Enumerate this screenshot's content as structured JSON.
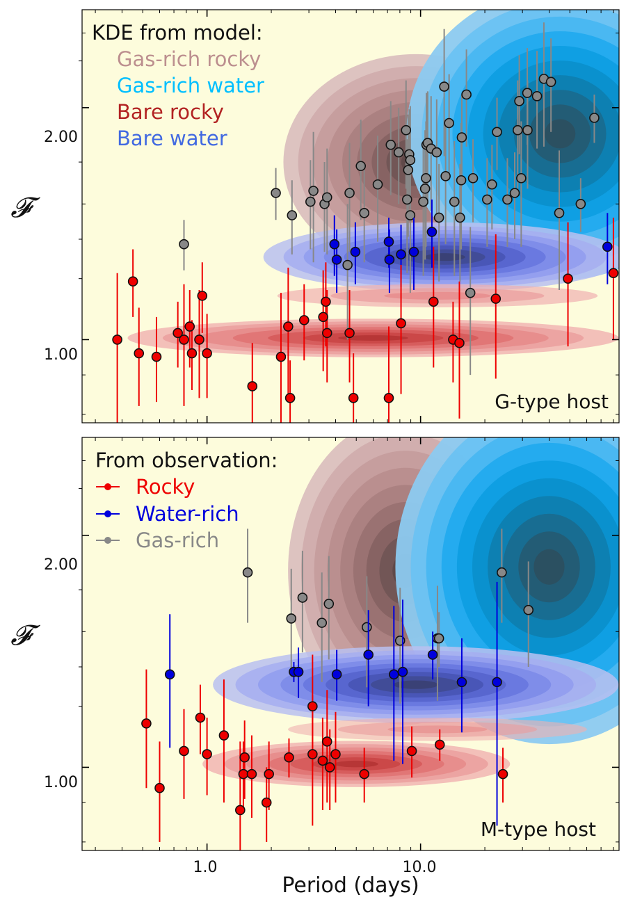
{
  "chart_data": [
    {
      "type": "scatter",
      "panel": "top",
      "xscale": "log",
      "xlim": [
        0.26,
        85
      ],
      "ylim": [
        0.78,
        2.68
      ],
      "yscale": "log",
      "ylabel": "𝓕",
      "yticks": [
        {
          "value": 1.0,
          "label": "1.00"
        },
        {
          "value": 2.0,
          "label": "2.00"
        }
      ],
      "host_label": "G-type host",
      "legend": {
        "title": "KDE from model:",
        "entries": [
          {
            "label": "Gas-rich rocky",
            "color": "#bc8f8f"
          },
          {
            "label": "Gas-rich water",
            "color": "#00bfff"
          },
          {
            "label": "Bare rocky",
            "color": "#b22222"
          },
          {
            "label": "Bare water",
            "color": "#4169e1"
          }
        ]
      },
      "series": [
        {
          "name": "Rocky",
          "color": "#ee0000",
          "points": [
            [
              0.38,
              1.0,
              0.22,
              0.22
            ],
            [
              0.45,
              1.19,
              0.12,
              0.12
            ],
            [
              0.48,
              0.96,
              0.14,
              0.14
            ],
            [
              0.58,
              0.95,
              0.12,
              0.12
            ],
            [
              0.73,
              1.02,
              0.1,
              0.1
            ],
            [
              0.78,
              1.0,
              0.18,
              0.18
            ],
            [
              0.83,
              1.04,
              0.12,
              0.12
            ],
            [
              0.85,
              0.96,
              0.1,
              0.1
            ],
            [
              0.92,
              1.0,
              0.16,
              0.16
            ],
            [
              0.95,
              1.14,
              0.12,
              0.12
            ],
            [
              1.0,
              0.96,
              0.12,
              0.12
            ],
            [
              1.63,
              0.87,
              0.12,
              0.12
            ],
            [
              2.22,
              0.95,
              0.2,
              0.2
            ],
            [
              2.4,
              1.04,
              0.2,
              0.2
            ],
            [
              2.45,
              0.84,
              0.1,
              0.1
            ],
            [
              2.85,
              1.06,
              0.12,
              0.12
            ],
            [
              3.5,
              1.07,
              0.16,
              0.16
            ],
            [
              3.6,
              1.12,
              0.14,
              0.14
            ],
            [
              3.65,
              1.02,
              0.14,
              0.14
            ],
            [
              4.65,
              1.02,
              0.14,
              0.14
            ],
            [
              4.85,
              0.84,
              0.12,
              0.12
            ],
            [
              7.1,
              0.84,
              0.2,
              0.2
            ],
            [
              8.1,
              1.05,
              0.2,
              0.2
            ],
            [
              11.5,
              1.12,
              0.2,
              0.2
            ],
            [
              14.2,
              1.0,
              0.12,
              0.12
            ],
            [
              15.2,
              0.99,
              0.2,
              0.2
            ],
            [
              22.5,
              1.13,
              0.24,
              0.24
            ],
            [
              49,
              1.2,
              0.22,
              0.22
            ],
            [
              80,
              1.22,
              0.22,
              0.22
            ]
          ]
        },
        {
          "name": "Water-rich",
          "color": "#0000dd",
          "points": [
            [
              3.95,
              1.33,
              0.12,
              0.12
            ],
            [
              4.05,
              1.27,
              0.12,
              0.12
            ],
            [
              4.95,
              1.3,
              0.12,
              0.12
            ],
            [
              7.1,
              1.34,
              0.1,
              0.1
            ],
            [
              7.15,
              1.27,
              0.12,
              0.12
            ],
            [
              8.1,
              1.29,
              0.12,
              0.12
            ],
            [
              9.3,
              1.3,
              0.14,
              0.14
            ],
            [
              11.3,
              1.38,
              0.14,
              0.14
            ],
            [
              75,
              1.32,
              0.14,
              0.14
            ]
          ]
        },
        {
          "name": "Gas-rich",
          "color": "#888888",
          "points": [
            [
              0.78,
              1.33,
              0.1,
              0.1
            ],
            [
              2.1,
              1.55,
              0.12,
              0.12
            ],
            [
              2.5,
              1.45,
              0.16,
              0.16
            ],
            [
              3.05,
              1.51,
              0.2,
              0.2
            ],
            [
              3.15,
              1.56,
              0.3,
              0.3
            ],
            [
              3.55,
              1.5,
              0.2,
              0.2
            ],
            [
              3.65,
              1.53,
              0.24,
              0.24
            ],
            [
              4.55,
              1.25,
              0.25,
              0.25
            ],
            [
              4.65,
              1.55,
              0.25,
              0.25
            ],
            [
              5.25,
              1.68,
              0.25,
              0.25
            ],
            [
              5.45,
              1.46,
              0.2,
              0.2
            ],
            [
              6.3,
              1.59,
              0.25,
              0.25
            ],
            [
              7.25,
              1.79,
              0.25,
              0.25
            ],
            [
              7.9,
              1.75,
              0.25,
              0.25
            ],
            [
              8.55,
              1.87,
              0.3,
              0.3
            ],
            [
              8.65,
              1.52,
              0.3,
              0.3
            ],
            [
              8.85,
              1.74,
              0.25,
              0.25
            ],
            [
              8.95,
              1.71,
              0.3,
              0.3
            ],
            [
              8.75,
              1.66,
              0.3,
              0.3
            ],
            [
              8.95,
              1.45,
              0.3,
              0.3
            ],
            [
              10.3,
              1.51,
              0.3,
              0.3
            ],
            [
              10.5,
              1.57,
              0.3,
              0.3
            ],
            [
              10.6,
              1.62,
              0.3,
              0.3
            ],
            [
              10.65,
              1.79,
              0.3,
              0.3
            ],
            [
              10.8,
              1.8,
              0.3,
              0.3
            ],
            [
              11.2,
              1.77,
              0.3,
              0.3
            ],
            [
              11.9,
              1.75,
              0.3,
              0.3
            ],
            [
              12.2,
              1.44,
              0.25,
              0.25
            ],
            [
              12.9,
              2.13,
              0.4,
              0.4
            ],
            [
              13.1,
              1.63,
              0.3,
              0.3
            ],
            [
              13.6,
              1.91,
              0.3,
              0.3
            ],
            [
              14.4,
              1.51,
              0.3,
              0.3
            ],
            [
              15.3,
              1.44,
              0.25,
              0.25
            ],
            [
              15.5,
              1.61,
              0.3,
              0.3
            ],
            [
              15.6,
              1.83,
              0.25,
              0.25
            ],
            [
              16.4,
              2.08,
              0.3,
              0.3
            ],
            [
              17.1,
              1.15,
              0.25,
              0.25
            ],
            [
              17.6,
              1.62,
              0.2,
              0.2
            ],
            [
              20.5,
              1.52,
              0.2,
              0.2
            ],
            [
              21.6,
              1.59,
              0.2,
              0.2
            ],
            [
              22.8,
              1.86,
              0.2,
              0.2
            ],
            [
              25.5,
              1.52,
              0.2,
              0.2
            ],
            [
              27.6,
              1.55,
              0.2,
              0.2
            ],
            [
              28.5,
              1.87,
              0.3,
              0.3
            ],
            [
              29.0,
              2.04,
              0.3,
              0.3
            ],
            [
              29.6,
              1.62,
              0.3,
              0.3
            ],
            [
              31.6,
              2.09,
              0.3,
              0.3
            ],
            [
              31.7,
              1.87,
              0.3,
              0.3
            ],
            [
              35.1,
              2.07,
              0.3,
              0.3
            ],
            [
              37.8,
              2.18,
              0.4,
              0.4
            ],
            [
              40.8,
              2.16,
              0.3,
              0.3
            ],
            [
              44.6,
              1.46,
              0.3,
              0.3
            ],
            [
              56.2,
              1.5,
              0.12,
              0.12
            ],
            [
              65.1,
              1.94,
              0.14,
              0.14
            ]
          ]
        }
      ]
    },
    {
      "type": "scatter",
      "panel": "bottom",
      "xscale": "log",
      "xlim": [
        0.26,
        85
      ],
      "ylim": [
        0.78,
        2.68
      ],
      "yscale": "log",
      "xlabel": "Period (days)",
      "ylabel": "𝓕",
      "xticks": [
        {
          "value": 1.0,
          "label": "1.0"
        },
        {
          "value": 10.0,
          "label": "10.0"
        }
      ],
      "yticks": [
        {
          "value": 1.0,
          "label": "1.00"
        },
        {
          "value": 2.0,
          "label": "2.00"
        }
      ],
      "host_label": "M-type host",
      "legend": {
        "title": "From observation:",
        "entries": [
          {
            "label": "Rocky",
            "color": "#ee0000"
          },
          {
            "label": "Water-rich",
            "color": "#0000dd"
          },
          {
            "label": "Gas-rich",
            "color": "#888888"
          }
        ]
      },
      "series": [
        {
          "name": "Rocky",
          "color": "#ee0000",
          "points": [
            [
              0.52,
              1.14,
              0.2,
              0.2
            ],
            [
              0.6,
              0.94,
              0.14,
              0.14
            ],
            [
              0.78,
              1.05,
              0.14,
              0.14
            ],
            [
              0.93,
              1.16,
              0.12,
              0.12
            ],
            [
              1.0,
              1.04,
              0.12,
              0.12
            ],
            [
              1.2,
              1.1,
              0.2,
              0.2
            ],
            [
              1.43,
              0.88,
              0.2,
              0.2
            ],
            [
              1.5,
              1.03,
              0.12,
              0.12
            ],
            [
              1.48,
              0.98,
              0.1,
              0.1
            ],
            [
              1.62,
              0.98,
              0.12,
              0.12
            ],
            [
              1.9,
              0.9,
              0.1,
              0.1
            ],
            [
              1.95,
              0.98,
              0.1,
              0.1
            ],
            [
              2.42,
              1.03,
              0.06,
              0.06
            ],
            [
              3.12,
              1.2,
              0.2,
              0.2
            ],
            [
              3.12,
              1.04,
              0.2,
              0.2
            ],
            [
              3.48,
              1.02,
              0.14,
              0.14
            ],
            [
              3.65,
              1.08,
              0.18,
              0.18
            ],
            [
              3.76,
              1.0,
              0.12,
              0.12
            ],
            [
              4.0,
              1.04,
              0.14,
              0.14
            ],
            [
              5.45,
              0.98,
              0.08,
              0.08
            ],
            [
              9.1,
              1.05,
              0.08,
              0.08
            ],
            [
              12.3,
              1.07,
              0.05,
              0.05
            ],
            [
              24.3,
              0.98,
              0.08,
              0.08
            ]
          ]
        },
        {
          "name": "Water-rich",
          "color": "#0000dd",
          "points": [
            [
              0.67,
              1.32,
              0.26,
              0.26
            ],
            [
              2.55,
              1.33,
              0.04,
              0.04
            ],
            [
              2.68,
              1.33,
              0.1,
              0.1
            ],
            [
              4.05,
              1.32,
              0.1,
              0.1
            ],
            [
              5.7,
              1.4,
              0.2,
              0.2
            ],
            [
              7.5,
              1.32,
              0.3,
              0.3
            ],
            [
              8.25,
              1.33,
              0.32,
              0.32
            ],
            [
              11.4,
              1.4,
              0.1,
              0.1
            ],
            [
              15.6,
              1.29,
              0.18,
              0.18
            ],
            [
              22.8,
              1.29,
              0.45,
              0.45
            ]
          ]
        },
        {
          "name": "Gas-rich",
          "color": "#888888",
          "points": [
            [
              1.55,
              1.79,
              0.25,
              0.25
            ],
            [
              2.48,
              1.56,
              0.25,
              0.25
            ],
            [
              2.8,
              1.66,
              0.25,
              0.25
            ],
            [
              3.45,
              1.54,
              0.25,
              0.25
            ],
            [
              3.72,
              1.63,
              0.25,
              0.25
            ],
            [
              5.6,
              1.52,
              0.25,
              0.25
            ],
            [
              8.02,
              1.46,
              0.25,
              0.25
            ],
            [
              12.0,
              1.47,
              0.25,
              0.25
            ],
            [
              12.2,
              1.47,
              0.12,
              0.12
            ],
            [
              24.0,
              1.79,
              0.25,
              0.25
            ],
            [
              32.0,
              1.6,
              0.25,
              0.25
            ]
          ]
        }
      ]
    }
  ]
}
